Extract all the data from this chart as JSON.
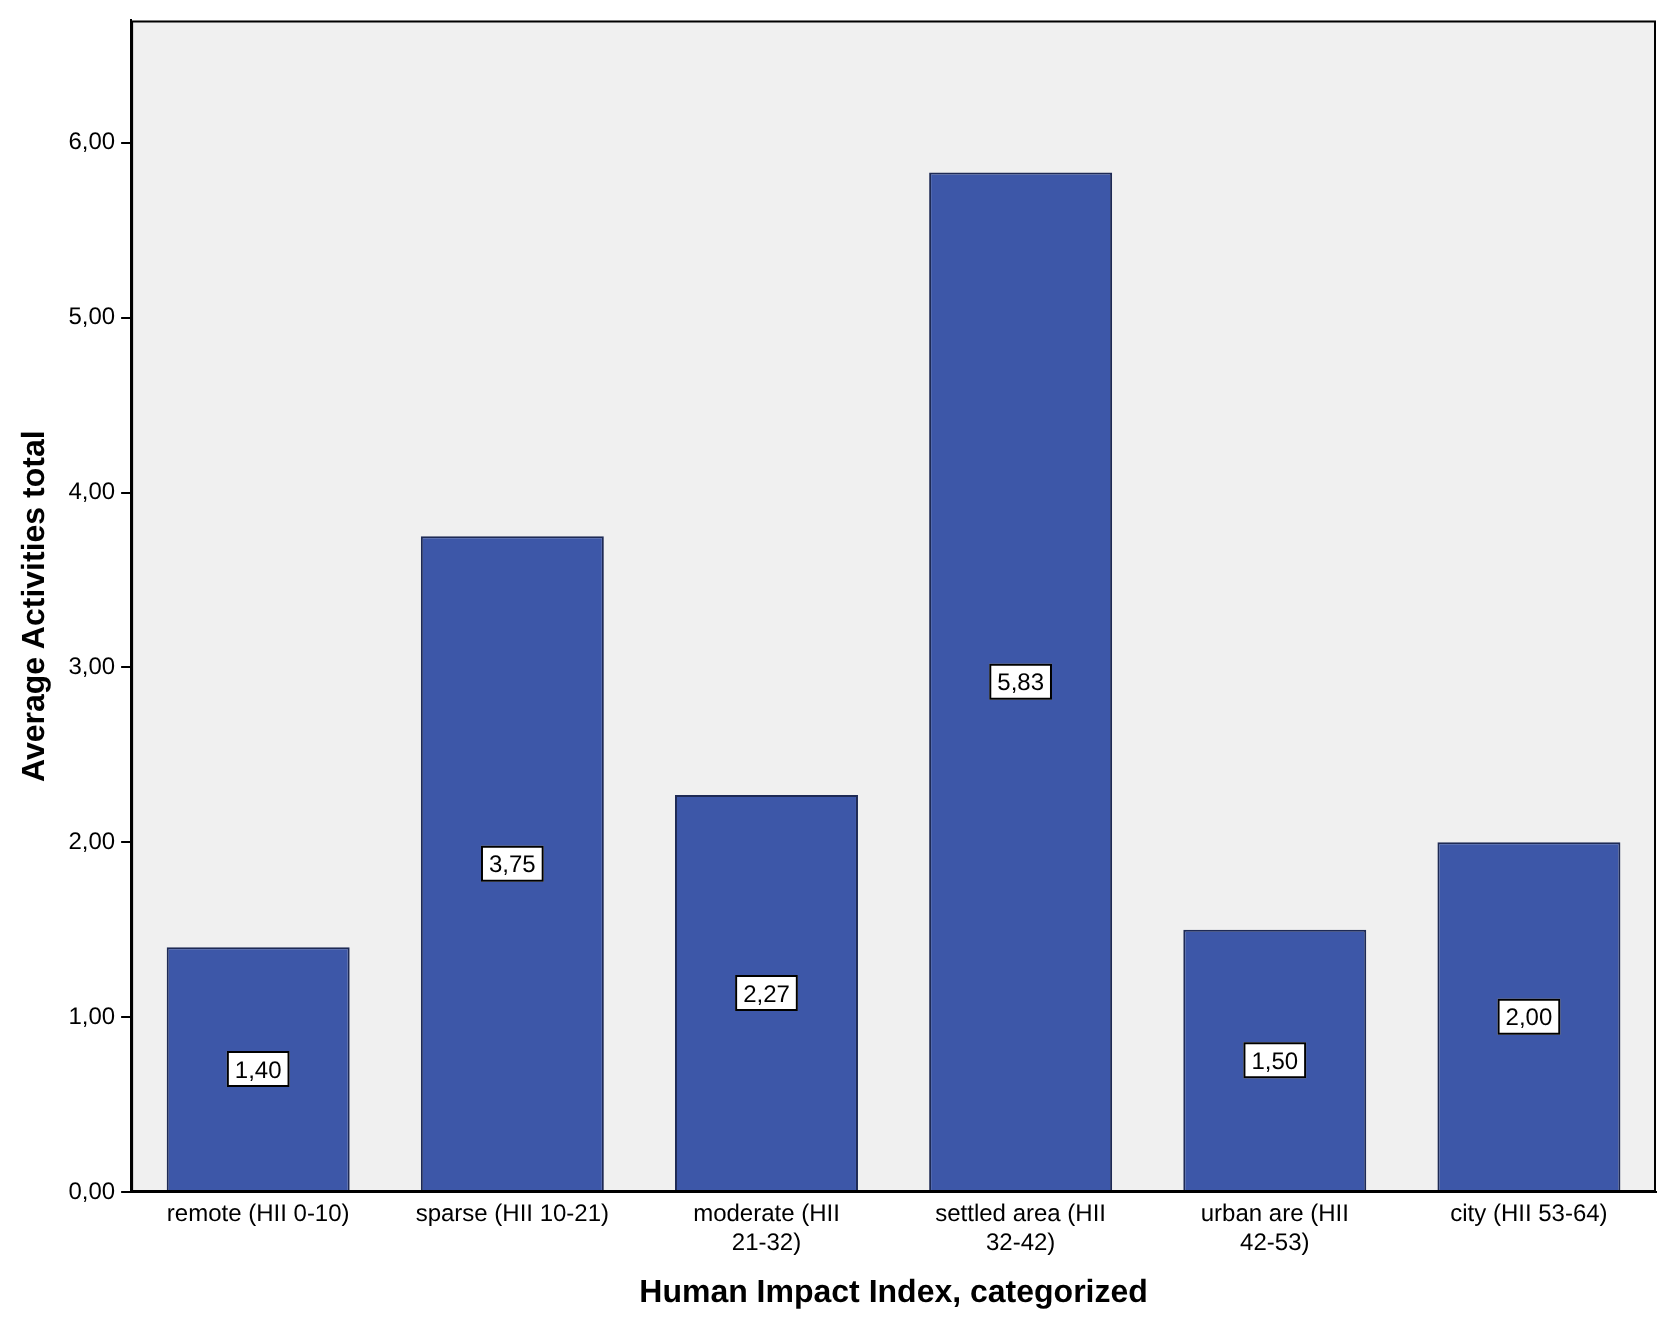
{
  "chart_data": {
    "type": "bar",
    "xlabel": "Human Impact Index, categorized",
    "ylabel": "Average Activities total",
    "categories": [
      "remote (HII 0-10)",
      "sparse (HII 10-21)",
      "moderate (HII 21-32)",
      "settled area (HII 32-42)",
      "urban are (HII 42-53)",
      "city (HII 53-64)"
    ],
    "values": [
      1.4,
      3.75,
      2.27,
      5.83,
      1.5,
      2.0
    ],
    "value_labels": [
      "1,40",
      "3,75",
      "2,27",
      "5,83",
      "1,50",
      "2,00"
    ],
    "color": "#3d57a8",
    "ylim": [
      0,
      6.7
    ],
    "yticks": [
      {
        "value": 0,
        "label": "0,00"
      },
      {
        "value": 1,
        "label": "1,00"
      },
      {
        "value": 2,
        "label": "2,00"
      },
      {
        "value": 3,
        "label": "3,00"
      },
      {
        "value": 4,
        "label": "4,00"
      },
      {
        "value": 5,
        "label": "5,00"
      },
      {
        "value": 6,
        "label": "6,00"
      }
    ]
  }
}
